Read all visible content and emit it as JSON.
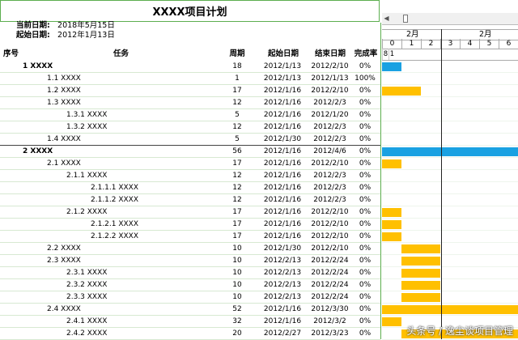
{
  "title": "XXXX项目计划",
  "dates": {
    "current_label": "当前日期:",
    "current_value": "2018年5月15日",
    "start_label": "起始日期:",
    "start_value": "2012年1月13日"
  },
  "columns": {
    "no": "序号",
    "task": "任务",
    "duration": "周期",
    "start": "起始日期",
    "end": "结束日期",
    "pct": "完成率"
  },
  "rows": [
    {
      "label": "1 XXXX",
      "indent": 28,
      "bold": true,
      "dur": "18",
      "start": "2012/1/13",
      "end": "2012/2/10",
      "pct": "0%"
    },
    {
      "label": "1.1 XXXX",
      "indent": 58,
      "bold": false,
      "dur": "1",
      "start": "2012/1/13",
      "end": "2012/1/13",
      "pct": "100%"
    },
    {
      "label": "1.2 XXXX",
      "indent": 58,
      "bold": false,
      "dur": "17",
      "start": "2012/1/16",
      "end": "2012/2/10",
      "pct": "0%"
    },
    {
      "label": "1.3 XXXX",
      "indent": 58,
      "bold": false,
      "dur": "12",
      "start": "2012/1/16",
      "end": "2012/2/3",
      "pct": "0%"
    },
    {
      "label": "1.3.1 XXXX",
      "indent": 82,
      "bold": false,
      "dur": "5",
      "start": "2012/1/16",
      "end": "2012/1/20",
      "pct": "0%"
    },
    {
      "label": "1.3.2 XXXX",
      "indent": 82,
      "bold": false,
      "dur": "12",
      "start": "2012/1/16",
      "end": "2012/2/3",
      "pct": "0%"
    },
    {
      "label": "1.4 XXXX",
      "indent": 58,
      "bold": false,
      "dur": "5",
      "start": "2012/1/30",
      "end": "2012/2/3",
      "pct": "0%"
    },
    {
      "label": "2 XXXX",
      "indent": 28,
      "bold": true,
      "dur": "56",
      "start": "2012/1/16",
      "end": "2012/4/6",
      "pct": "0%"
    },
    {
      "label": "2.1 XXXX",
      "indent": 58,
      "bold": false,
      "dur": "17",
      "start": "2012/1/16",
      "end": "2012/2/10",
      "pct": "0%"
    },
    {
      "label": "2.1.1 XXXX",
      "indent": 82,
      "bold": false,
      "dur": "12",
      "start": "2012/1/16",
      "end": "2012/2/3",
      "pct": "0%"
    },
    {
      "label": "2.1.1.1 XXXX",
      "indent": 112,
      "bold": false,
      "dur": "12",
      "start": "2012/1/16",
      "end": "2012/2/3",
      "pct": "0%"
    },
    {
      "label": "2.1.1.2 XXXX",
      "indent": 112,
      "bold": false,
      "dur": "12",
      "start": "2012/1/16",
      "end": "2012/2/3",
      "pct": "0%"
    },
    {
      "label": "2.1.2 XXXX",
      "indent": 82,
      "bold": false,
      "dur": "17",
      "start": "2012/1/16",
      "end": "2012/2/10",
      "pct": "0%"
    },
    {
      "label": "2.1.2.1 XXXX",
      "indent": 112,
      "bold": false,
      "dur": "17",
      "start": "2012/1/16",
      "end": "2012/2/10",
      "pct": "0%"
    },
    {
      "label": "2.1.2.2 XXXX",
      "indent": 112,
      "bold": false,
      "dur": "17",
      "start": "2012/1/16",
      "end": "2012/2/10",
      "pct": "0%"
    },
    {
      "label": "2.2 XXXX",
      "indent": 58,
      "bold": false,
      "dur": "10",
      "start": "2012/1/30",
      "end": "2012/2/10",
      "pct": "0%"
    },
    {
      "label": "2.3 XXXX",
      "indent": 58,
      "bold": false,
      "dur": "10",
      "start": "2012/2/13",
      "end": "2012/2/24",
      "pct": "0%"
    },
    {
      "label": "2.3.1 XXXX",
      "indent": 82,
      "bold": false,
      "dur": "10",
      "start": "2012/2/13",
      "end": "2012/2/24",
      "pct": "0%"
    },
    {
      "label": "2.3.2 XXXX",
      "indent": 82,
      "bold": false,
      "dur": "10",
      "start": "2012/2/13",
      "end": "2012/2/24",
      "pct": "0%"
    },
    {
      "label": "2.3.3 XXXX",
      "indent": 82,
      "bold": false,
      "dur": "10",
      "start": "2012/2/13",
      "end": "2012/2/24",
      "pct": "0%"
    },
    {
      "label": "2.4 XXXX",
      "indent": 58,
      "bold": false,
      "dur": "52",
      "start": "2012/1/16",
      "end": "2012/3/30",
      "pct": "0%"
    },
    {
      "label": "2.4.1 XXXX",
      "indent": 82,
      "bold": false,
      "dur": "32",
      "start": "2012/1/16",
      "end": "2012/3/2",
      "pct": "0%"
    },
    {
      "label": "2.4.2 XXXX",
      "indent": 82,
      "bold": false,
      "dur": "20",
      "start": "2012/2/27",
      "end": "2012/3/23",
      "pct": "0%"
    }
  ],
  "gantt": {
    "months": [
      "2月",
      "2月"
    ],
    "days_top": [
      "0",
      "1",
      "2",
      "3",
      "4",
      "5",
      "6"
    ],
    "days_bottom": [
      "8",
      "1"
    ],
    "colors": {
      "summary": "#1aa1e2",
      "task": "#ffc000",
      "today_line": "#222222"
    }
  },
  "bars": [
    {
      "row": 0,
      "kind": "summary",
      "from_day": 0,
      "to_day": 1
    },
    {
      "row": 2,
      "kind": "task",
      "from_day": 0,
      "to_day": 2
    },
    {
      "row": 7,
      "kind": "summary",
      "from_day": 0,
      "to_day": 7
    },
    {
      "row": 8,
      "kind": "task",
      "from_day": 0,
      "to_day": 1
    },
    {
      "row": 12,
      "kind": "task",
      "from_day": 0,
      "to_day": 1
    },
    {
      "row": 13,
      "kind": "task",
      "from_day": 0,
      "to_day": 1
    },
    {
      "row": 14,
      "kind": "task",
      "from_day": 0,
      "to_day": 1
    },
    {
      "row": 15,
      "kind": "task",
      "from_day": 1,
      "to_day": 3
    },
    {
      "row": 16,
      "kind": "task",
      "from_day": 1,
      "to_day": 3
    },
    {
      "row": 17,
      "kind": "task",
      "from_day": 1,
      "to_day": 3
    },
    {
      "row": 18,
      "kind": "task",
      "from_day": 1,
      "to_day": 3
    },
    {
      "row": 19,
      "kind": "task",
      "from_day": 1,
      "to_day": 3
    },
    {
      "row": 20,
      "kind": "task",
      "from_day": 0,
      "to_day": 7
    },
    {
      "row": 21,
      "kind": "task",
      "from_day": 0,
      "to_day": 1
    },
    {
      "row": 22,
      "kind": "task",
      "from_day": 1,
      "to_day": 7
    }
  ],
  "watermark": "头条号 / 逸尘谈项目管理"
}
